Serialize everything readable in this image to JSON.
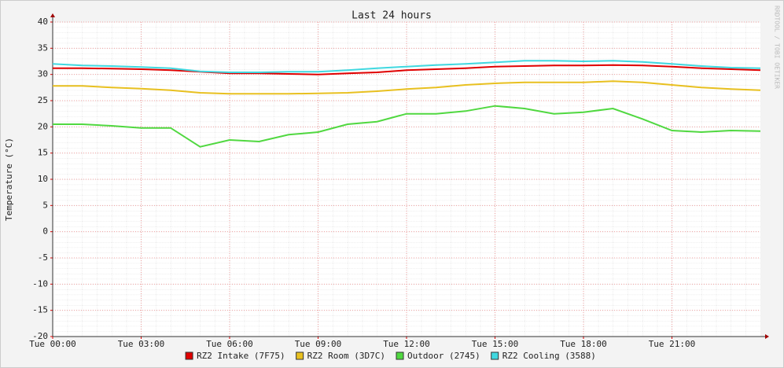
{
  "chart_data": {
    "type": "line",
    "title": "Last 24 hours",
    "ylabel": "Temperature (°C)",
    "watermark": "RRDTOOL / TOBI OETIKER",
    "x": [
      0,
      1,
      2,
      3,
      4,
      5,
      6,
      7,
      8,
      9,
      10,
      11,
      12,
      13,
      14,
      15,
      16,
      17,
      18,
      19,
      20,
      21,
      22,
      23,
      24
    ],
    "xlim": [
      0,
      24
    ],
    "xticks": [
      {
        "value": 0,
        "label": "Tue 00:00"
      },
      {
        "value": 3,
        "label": "Tue 03:00"
      },
      {
        "value": 6,
        "label": "Tue 06:00"
      },
      {
        "value": 9,
        "label": "Tue 09:00"
      },
      {
        "value": 12,
        "label": "Tue 12:00"
      },
      {
        "value": 15,
        "label": "Tue 15:00"
      },
      {
        "value": 18,
        "label": "Tue 18:00"
      },
      {
        "value": 21,
        "label": "Tue 21:00"
      }
    ],
    "ylim": [
      -20,
      40
    ],
    "yticks": [
      -20,
      -15,
      -10,
      -5,
      0,
      5,
      10,
      15,
      20,
      25,
      30,
      35,
      40
    ],
    "grid": true,
    "legend": "bottom",
    "series": [
      {
        "name": "RZ2 Intake (7F75)",
        "color": "#e00000",
        "values": [
          31.2,
          31.2,
          31.1,
          31,
          30.8,
          30.5,
          30.2,
          30.2,
          30.1,
          30.0,
          30.2,
          30.4,
          30.8,
          31,
          31.2,
          31.5,
          31.6,
          31.7,
          31.7,
          31.8,
          31.7,
          31.5,
          31.2,
          31,
          30.8
        ]
      },
      {
        "name": "RZ2 Room (3D7C)",
        "color": "#e8c020",
        "values": [
          27.8,
          27.8,
          27.5,
          27.3,
          27,
          26.5,
          26.3,
          26.3,
          26.3,
          26.4,
          26.5,
          26.8,
          27.2,
          27.5,
          28,
          28.3,
          28.5,
          28.5,
          28.5,
          28.7,
          28.5,
          28,
          27.5,
          27.2,
          27
        ]
      },
      {
        "name": "Outdoor (2745)",
        "color": "#50d840",
        "values": [
          20.5,
          20.5,
          20.2,
          19.8,
          19.8,
          16.2,
          17.5,
          17.2,
          18.5,
          19,
          20.5,
          21,
          22.5,
          22.5,
          23,
          24,
          23.5,
          22.5,
          22.8,
          23.5,
          21.5,
          19.3,
          19,
          19.3,
          19.2
        ]
      },
      {
        "name": "RZ2 Cooling (3588)",
        "color": "#40d8e0",
        "values": [
          32,
          31.7,
          31.6,
          31.4,
          31.2,
          30.6,
          30.4,
          30.4,
          30.5,
          30.5,
          30.8,
          31.2,
          31.5,
          31.8,
          32,
          32.3,
          32.6,
          32.6,
          32.5,
          32.6,
          32.4,
          32,
          31.6,
          31.3,
          31.2
        ]
      }
    ]
  }
}
